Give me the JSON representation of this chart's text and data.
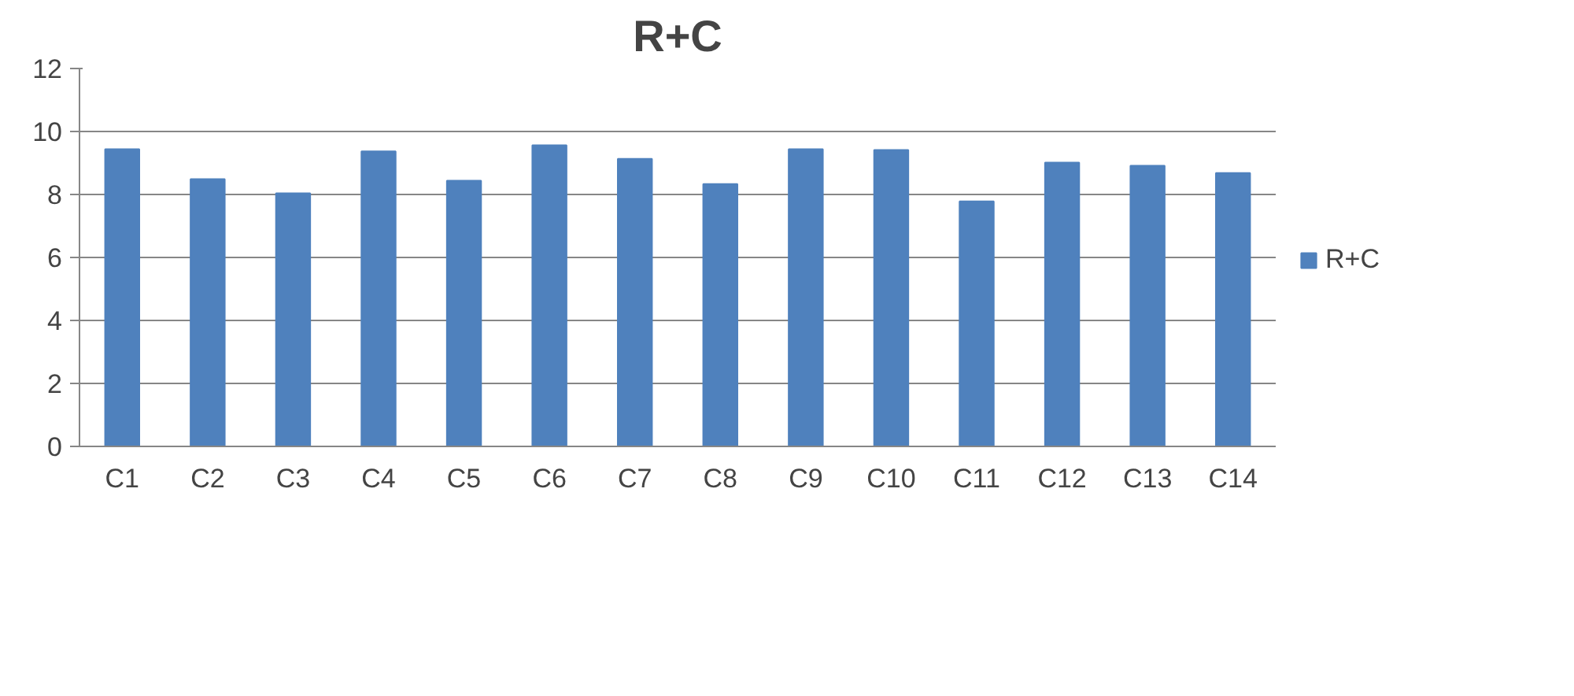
{
  "chart_data": {
    "type": "bar",
    "title": "R+C",
    "categories": [
      "C1",
      "C2",
      "C3",
      "C4",
      "C5",
      "C6",
      "C7",
      "C8",
      "C9",
      "C10",
      "C11",
      "C12",
      "C13",
      "C14"
    ],
    "series": [
      {
        "name": "R+C",
        "color": "#4f81bd",
        "values": [
          9.44,
          8.49,
          8.04,
          9.37,
          8.44,
          9.56,
          9.13,
          8.33,
          9.44,
          9.41,
          7.78,
          9.01,
          8.91,
          8.68
        ]
      }
    ],
    "ylim": [
      0,
      12
    ],
    "yticks": [
      0,
      2,
      4,
      6,
      8,
      10,
      12
    ],
    "grid": "y",
    "legend": "right"
  }
}
